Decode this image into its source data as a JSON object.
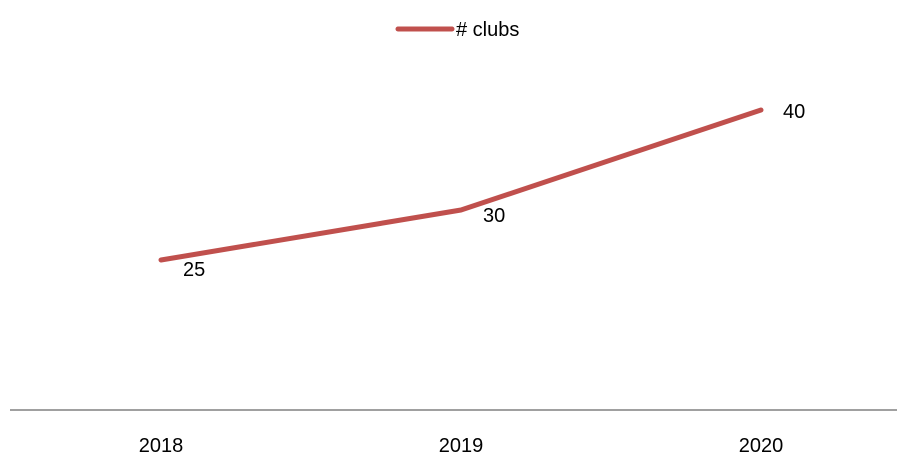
{
  "chart_data": {
    "type": "line",
    "categories": [
      "2018",
      "2019",
      "2020"
    ],
    "series": [
      {
        "name": "# clubs",
        "values": [
          25,
          30,
          40
        ],
        "color": "#C0504D"
      }
    ],
    "ylim": [
      10,
      45
    ],
    "grid": false,
    "legend": "top-center",
    "axis_color": "#808080"
  }
}
